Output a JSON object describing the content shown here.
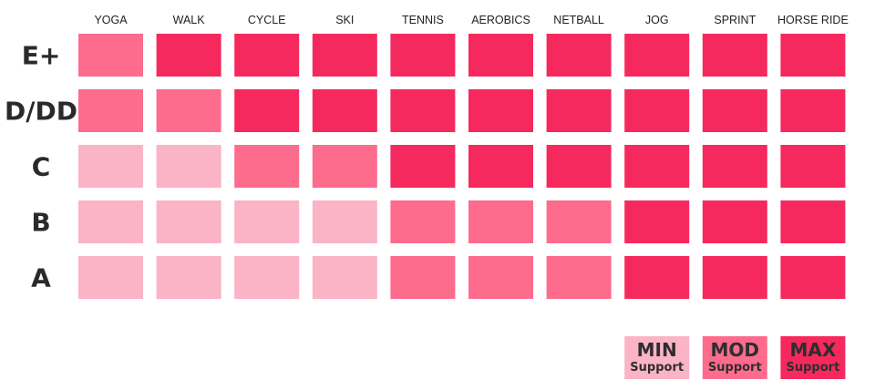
{
  "chart_data": {
    "type": "heatmap",
    "columns": [
      "YOGA",
      "WALK",
      "CYCLE",
      "SKI",
      "TENNIS",
      "AEROBICS",
      "NETBALL",
      "JOG",
      "SPRINT",
      "HORSE RIDE"
    ],
    "rows": [
      "E+",
      "D/DD",
      "C",
      "B",
      "A"
    ],
    "levels": [
      {
        "key": "min",
        "label": "MIN",
        "sublabel": "Support",
        "color": "#fbb3c6"
      },
      {
        "key": "mod",
        "label": "MOD",
        "sublabel": "Support",
        "color": "#fd6b8d"
      },
      {
        "key": "max",
        "label": "MAX",
        "sublabel": "Support",
        "color": "#f5295d"
      }
    ],
    "values": [
      [
        "mod",
        "max",
        "max",
        "max",
        "max",
        "max",
        "max",
        "max",
        "max",
        "max"
      ],
      [
        "mod",
        "mod",
        "max",
        "max",
        "max",
        "max",
        "max",
        "max",
        "max",
        "max"
      ],
      [
        "min",
        "min",
        "mod",
        "mod",
        "max",
        "max",
        "max",
        "max",
        "max",
        "max"
      ],
      [
        "min",
        "min",
        "min",
        "min",
        "mod",
        "mod",
        "mod",
        "max",
        "max",
        "max"
      ],
      [
        "min",
        "min",
        "min",
        "min",
        "mod",
        "mod",
        "mod",
        "max",
        "max",
        "max"
      ]
    ]
  }
}
